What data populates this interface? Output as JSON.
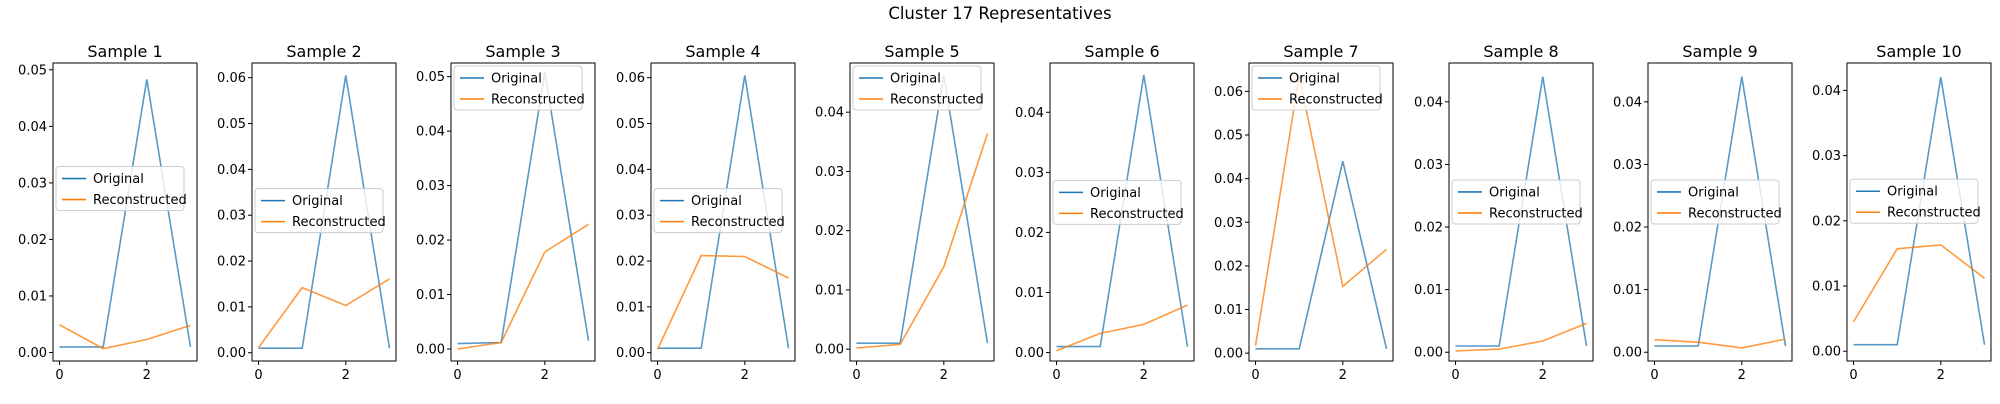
{
  "figure": {
    "title": "Cluster 17 Representatives",
    "colors": {
      "original": "#1f77b4",
      "reconstructed": "#ff7f0e"
    }
  },
  "chart_data": [
    {
      "type": "line",
      "title": "Sample 1",
      "x": [
        0,
        1,
        2,
        3
      ],
      "xticks": [
        0,
        2
      ],
      "xlim": [
        -0.15,
        3.15
      ],
      "ylim": [
        -0.0015,
        0.0512
      ],
      "yticks": [
        0,
        0.01,
        0.02,
        0.03,
        0.04,
        0.05
      ],
      "ytick_labels": [
        "0.00",
        "0.01",
        "0.02",
        "0.03",
        "0.04",
        "0.05"
      ],
      "legend": "center-left",
      "legend_y": 0.029,
      "series": [
        {
          "name": "Original",
          "values": [
            0.001,
            0.001,
            0.0483,
            0.001
          ]
        },
        {
          "name": "Reconstructed",
          "values": [
            0.0049,
            0.0007,
            0.0023,
            0.0048
          ]
        }
      ]
    },
    {
      "type": "line",
      "title": "Sample 2",
      "x": [
        0,
        1,
        2,
        3
      ],
      "xticks": [
        0,
        2
      ],
      "xlim": [
        -0.15,
        3.15
      ],
      "ylim": [
        -0.0018,
        0.0632
      ],
      "yticks": [
        0,
        0.01,
        0.02,
        0.03,
        0.04,
        0.05,
        0.06
      ],
      "ytick_labels": [
        "0.00",
        "0.01",
        "0.02",
        "0.03",
        "0.04",
        "0.05",
        "0.06"
      ],
      "legend": "center-left",
      "legend_y": 0.031,
      "series": [
        {
          "name": "Original",
          "values": [
            0.001,
            0.001,
            0.0605,
            0.001
          ]
        },
        {
          "name": "Reconstructed",
          "values": [
            0.0011,
            0.0142,
            0.0103,
            0.0161
          ]
        }
      ]
    },
    {
      "type": "line",
      "title": "Sample 3",
      "x": [
        0,
        1,
        2,
        3
      ],
      "xticks": [
        0,
        2
      ],
      "xlim": [
        -0.15,
        3.15
      ],
      "ylim": [
        -0.0022,
        0.0525
      ],
      "yticks": [
        0,
        0.01,
        0.02,
        0.03,
        0.04,
        0.05
      ],
      "ytick_labels": [
        "0.00",
        "0.01",
        "0.02",
        "0.03",
        "0.04",
        "0.05"
      ],
      "legend": "upper-left",
      "legend_y": 0.048,
      "series": [
        {
          "name": "Original",
          "values": [
            0.001,
            0.0012,
            0.0508,
            0.0015
          ]
        },
        {
          "name": "Reconstructed",
          "values": [
            0.0,
            0.0012,
            0.0178,
            0.0229
          ]
        }
      ]
    },
    {
      "type": "line",
      "title": "Sample 4",
      "x": [
        0,
        1,
        2,
        3
      ],
      "xticks": [
        0,
        2
      ],
      "xlim": [
        -0.15,
        3.15
      ],
      "ylim": [
        -0.0018,
        0.0632
      ],
      "yticks": [
        0,
        0.01,
        0.02,
        0.03,
        0.04,
        0.05,
        0.06
      ],
      "ytick_labels": [
        "0.00",
        "0.01",
        "0.02",
        "0.03",
        "0.04",
        "0.05",
        "0.06"
      ],
      "legend": "center-left",
      "legend_y": 0.031,
      "series": [
        {
          "name": "Original",
          "values": [
            0.001,
            0.001,
            0.0605,
            0.001
          ]
        },
        {
          "name": "Reconstructed",
          "values": [
            0.0007,
            0.0212,
            0.021,
            0.0163
          ]
        }
      ]
    },
    {
      "type": "line",
      "title": "Sample 5",
      "x": [
        0,
        1,
        2,
        3
      ],
      "xticks": [
        0,
        2
      ],
      "xlim": [
        -0.15,
        3.15
      ],
      "ylim": [
        -0.002,
        0.0483
      ],
      "yticks": [
        0,
        0.01,
        0.02,
        0.03,
        0.04
      ],
      "ytick_labels": [
        "0.00",
        "0.01",
        "0.02",
        "0.03",
        "0.04"
      ],
      "legend": "upper-left",
      "legend_y": 0.0443,
      "series": [
        {
          "name": "Original",
          "values": [
            0.001,
            0.001,
            0.0462,
            0.001
          ]
        },
        {
          "name": "Reconstructed",
          "values": [
            0.0002,
            0.0008,
            0.0139,
            0.0364
          ]
        }
      ]
    },
    {
      "type": "line",
      "title": "Sample 6",
      "x": [
        0,
        1,
        2,
        3
      ],
      "xticks": [
        0,
        2
      ],
      "xlim": [
        -0.15,
        3.15
      ],
      "ylim": [
        -0.0014,
        0.0482
      ],
      "yticks": [
        0,
        0.01,
        0.02,
        0.03,
        0.04
      ],
      "ytick_labels": [
        "0.00",
        "0.01",
        "0.02",
        "0.03",
        "0.04"
      ],
      "legend": "center-left",
      "legend_y": 0.025,
      "series": [
        {
          "name": "Original",
          "values": [
            0.001,
            0.001,
            0.0462,
            0.001
          ]
        },
        {
          "name": "Reconstructed",
          "values": [
            0.0003,
            0.0032,
            0.0047,
            0.0079
          ]
        }
      ]
    },
    {
      "type": "line",
      "title": "Sample 7",
      "x": [
        0,
        1,
        2,
        3
      ],
      "xticks": [
        0,
        2
      ],
      "xlim": [
        -0.15,
        3.15
      ],
      "ylim": [
        -0.0018,
        0.0665
      ],
      "yticks": [
        0,
        0.01,
        0.02,
        0.03,
        0.04,
        0.05,
        0.06
      ],
      "ytick_labels": [
        "0.00",
        "0.01",
        "0.02",
        "0.03",
        "0.04",
        "0.05",
        "0.06"
      ],
      "legend": "upper-left",
      "legend_y": 0.063,
      "series": [
        {
          "name": "Original",
          "values": [
            0.001,
            0.001,
            0.044,
            0.001
          ]
        },
        {
          "name": "Reconstructed",
          "values": [
            0.0017,
            0.0635,
            0.0153,
            0.0238
          ]
        }
      ]
    },
    {
      "type": "line",
      "title": "Sample 8",
      "x": [
        0,
        1,
        2,
        3
      ],
      "xticks": [
        0,
        2
      ],
      "xlim": [
        -0.15,
        3.15
      ],
      "ylim": [
        -0.0014,
        0.0462
      ],
      "yticks": [
        0,
        0.01,
        0.02,
        0.03,
        0.04
      ],
      "ytick_labels": [
        "0.00",
        "0.01",
        "0.02",
        "0.03",
        "0.04"
      ],
      "legend": "center-left",
      "legend_y": 0.024,
      "series": [
        {
          "name": "Original",
          "values": [
            0.001,
            0.001,
            0.044,
            0.001
          ]
        },
        {
          "name": "Reconstructed",
          "values": [
            0.0002,
            0.0005,
            0.0018,
            0.0046
          ]
        }
      ]
    },
    {
      "type": "line",
      "title": "Sample 9",
      "x": [
        0,
        1,
        2,
        3
      ],
      "xticks": [
        0,
        2
      ],
      "xlim": [
        -0.15,
        3.15
      ],
      "ylim": [
        -0.0014,
        0.0462
      ],
      "yticks": [
        0,
        0.01,
        0.02,
        0.03,
        0.04
      ],
      "ytick_labels": [
        "0.00",
        "0.01",
        "0.02",
        "0.03",
        "0.04"
      ],
      "legend": "center-left",
      "legend_y": 0.024,
      "series": [
        {
          "name": "Original",
          "values": [
            0.001,
            0.001,
            0.044,
            0.001
          ]
        },
        {
          "name": "Reconstructed",
          "values": [
            0.002,
            0.0016,
            0.0007,
            0.0021
          ]
        }
      ]
    },
    {
      "type": "line",
      "title": "Sample 10",
      "x": [
        0,
        1,
        2,
        3
      ],
      "xticks": [
        0,
        2
      ],
      "xlim": [
        -0.15,
        3.15
      ],
      "ylim": [
        -0.0015,
        0.0442
      ],
      "yticks": [
        0,
        0.01,
        0.02,
        0.03,
        0.04
      ],
      "ytick_labels": [
        "0.00",
        "0.01",
        "0.02",
        "0.03",
        "0.04"
      ],
      "legend": "center-left",
      "legend_y": 0.023,
      "series": [
        {
          "name": "Original",
          "values": [
            0.001,
            0.001,
            0.042,
            0.001
          ]
        },
        {
          "name": "Reconstructed",
          "values": [
            0.0045,
            0.0157,
            0.0163,
            0.0112
          ]
        }
      ]
    }
  ]
}
